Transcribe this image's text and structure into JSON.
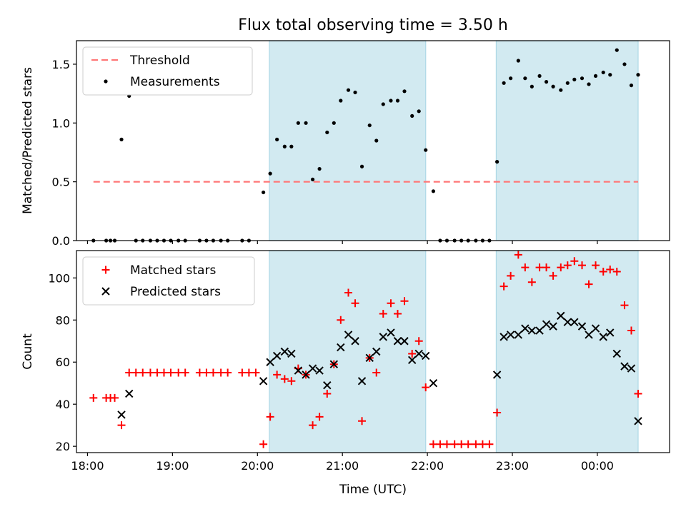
{
  "title": "Flux total observing time = 3.50 h",
  "colors": {
    "threshold": "#ff7777",
    "measurement": "#000000",
    "matched": "#ff0000",
    "predicted": "#000000",
    "shade": "#add8e6"
  },
  "chart_data": [
    {
      "type": "scatter",
      "ylabel": "Matched/Predicted stars",
      "xlabel": "",
      "xlim": [
        17.87,
        24.85
      ],
      "ylim": [
        0,
        1.7
      ],
      "yticks": [
        0.0,
        0.5,
        1.0,
        1.5
      ],
      "ytick_labels": [
        "0.0",
        "0.5",
        "1.0",
        "1.5"
      ],
      "xticks": [
        18,
        19,
        20,
        21,
        22,
        23,
        24
      ],
      "legend": {
        "placement": "top-left",
        "entries": [
          "Threshold",
          "Measurements"
        ]
      },
      "shaded_regions": [
        [
          20.14,
          21.98
        ],
        [
          22.81,
          24.48
        ]
      ],
      "threshold": {
        "name": "Threshold",
        "y": 0.5,
        "x_range": [
          18.07,
          24.48
        ]
      },
      "series": [
        {
          "name": "Measurements",
          "marker": "dot",
          "x": [
            18.07,
            18.22,
            18.27,
            18.32,
            18.4,
            18.49,
            18.57,
            18.65,
            18.74,
            18.82,
            18.9,
            18.98,
            19.07,
            19.15,
            19.32,
            19.4,
            19.48,
            19.57,
            19.65,
            19.82,
            19.9,
            20.07,
            20.15,
            20.23,
            20.32,
            20.4,
            20.48,
            20.57,
            20.65,
            20.73,
            20.82,
            20.9,
            20.98,
            21.07,
            21.15,
            21.23,
            21.32,
            21.4,
            21.48,
            21.57,
            21.65,
            21.73,
            21.82,
            21.9,
            21.98,
            22.07,
            22.15,
            22.23,
            22.32,
            22.4,
            22.48,
            22.57,
            22.65,
            22.73,
            22.82,
            22.9,
            22.98,
            23.07,
            23.15,
            23.23,
            23.32,
            23.4,
            23.48,
            23.57,
            23.65,
            23.73,
            23.82,
            23.9,
            23.98,
            24.07,
            24.15,
            24.23,
            24.32,
            24.4,
            24.48
          ],
          "y": [
            0.0,
            0.0,
            0.0,
            0.0,
            0.86,
            1.23,
            0.0,
            0.0,
            0.0,
            0.0,
            0.0,
            0.0,
            0.0,
            0.0,
            0.0,
            0.0,
            0.0,
            0.0,
            0.0,
            0.0,
            0.0,
            0.41,
            0.57,
            0.86,
            0.8,
            0.8,
            1.0,
            1.0,
            0.52,
            0.61,
            0.92,
            1.0,
            1.19,
            1.28,
            1.26,
            0.63,
            0.98,
            0.85,
            1.16,
            1.19,
            1.19,
            1.27,
            1.06,
            1.1,
            0.77,
            0.42,
            0.0,
            0.0,
            0.0,
            0.0,
            0.0,
            0.0,
            0.0,
            0.0,
            0.67,
            1.34,
            1.38,
            1.53,
            1.38,
            1.31,
            1.4,
            1.35,
            1.31,
            1.28,
            1.34,
            1.37,
            1.38,
            1.33,
            1.4,
            1.43,
            1.41,
            1.62,
            1.5,
            1.32,
            1.41
          ]
        }
      ]
    },
    {
      "type": "scatter",
      "ylabel": "Count",
      "xlabel": "Time (UTC)",
      "xlim": [
        17.87,
        24.85
      ],
      "ylim": [
        17,
        113
      ],
      "yticks": [
        20,
        40,
        60,
        80,
        100
      ],
      "ytick_labels": [
        "20",
        "40",
        "60",
        "80",
        "100"
      ],
      "xticks": [
        18,
        19,
        20,
        21,
        22,
        23,
        24
      ],
      "xtick_labels": [
        "18:00",
        "19:00",
        "20:00",
        "21:00",
        "22:00",
        "23:00",
        "00:00"
      ],
      "legend": {
        "placement": "top-left",
        "entries": [
          "Matched stars",
          "Predicted stars"
        ]
      },
      "shaded_regions": [
        [
          20.14,
          21.98
        ],
        [
          22.81,
          24.48
        ]
      ],
      "series": [
        {
          "name": "Matched stars",
          "marker": "plus",
          "x": [
            18.07,
            18.22,
            18.27,
            18.32,
            18.4,
            18.49,
            18.57,
            18.65,
            18.74,
            18.82,
            18.9,
            18.98,
            19.07,
            19.15,
            19.32,
            19.4,
            19.48,
            19.57,
            19.65,
            19.82,
            19.9,
            19.98,
            20.07,
            20.15,
            20.23,
            20.32,
            20.4,
            20.48,
            20.57,
            20.65,
            20.73,
            20.82,
            20.9,
            20.98,
            21.07,
            21.15,
            21.23,
            21.32,
            21.4,
            21.48,
            21.57,
            21.65,
            21.73,
            21.82,
            21.9,
            21.98,
            22.07,
            22.15,
            22.23,
            22.32,
            22.4,
            22.48,
            22.57,
            22.65,
            22.73,
            22.82,
            22.9,
            22.98,
            23.07,
            23.15,
            23.23,
            23.32,
            23.4,
            23.48,
            23.57,
            23.65,
            23.73,
            23.82,
            23.9,
            23.98,
            24.07,
            24.15,
            24.23,
            24.32,
            24.4,
            24.48
          ],
          "y": [
            43,
            43,
            43,
            43,
            30,
            55,
            55,
            55,
            55,
            55,
            55,
            55,
            55,
            55,
            55,
            55,
            55,
            55,
            55,
            55,
            55,
            55,
            21,
            34,
            54,
            52,
            51,
            57,
            54,
            30,
            34,
            45,
            59,
            80,
            93,
            88,
            32,
            62,
            55,
            83,
            88,
            83,
            89,
            64,
            70,
            48,
            21,
            21,
            21,
            21,
            21,
            21,
            21,
            21,
            21,
            36,
            96,
            101,
            111,
            105,
            98,
            105,
            105,
            101,
            105,
            106,
            108,
            106,
            97,
            106,
            103,
            104,
            103,
            87,
            75,
            45
          ]
        },
        {
          "name": "Predicted stars",
          "marker": "x",
          "x": [
            20.07,
            20.15,
            20.23,
            20.32,
            20.4,
            20.48,
            20.57,
            20.65,
            20.73,
            20.82,
            20.9,
            20.98,
            21.07,
            21.15,
            21.23,
            21.32,
            21.4,
            21.48,
            21.57,
            21.65,
            21.73,
            21.82,
            21.9,
            21.98,
            22.07,
            18.4,
            18.49,
            22.82,
            22.9,
            22.98,
            23.07,
            23.15,
            23.23,
            23.32,
            23.4,
            23.48,
            23.57,
            23.65,
            23.73,
            23.82,
            23.9,
            23.98,
            24.07,
            24.15,
            24.23,
            24.32,
            24.4,
            24.48
          ],
          "y": [
            51,
            60,
            63,
            65,
            64,
            56,
            54,
            57,
            56,
            49,
            59,
            67,
            73,
            70,
            51,
            62,
            65,
            72,
            74,
            70,
            70,
            61,
            64,
            63,
            50,
            35,
            45,
            54,
            72,
            73,
            73,
            76,
            75,
            75,
            78,
            77,
            82,
            79,
            79,
            77,
            73,
            76,
            72,
            74,
            64,
            58,
            57,
            32
          ]
        }
      ]
    }
  ]
}
